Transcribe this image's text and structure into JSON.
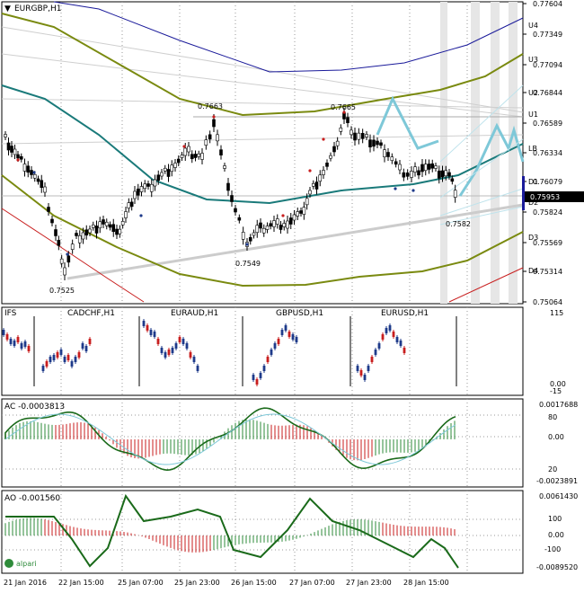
{
  "chart": {
    "symbol_title": "EURGBP,H1",
    "menu_icon": "triangle-down-icon",
    "price_ticks": [
      "0.77604",
      "0.77349",
      "0.77094",
      "0.76844",
      "0.76589",
      "0.76334",
      "0.76079",
      "0.75953",
      "0.75824",
      "0.75569",
      "0.75314",
      "0.75064"
    ],
    "current_price": "0.75953",
    "band_labels": [
      "U4",
      "U3",
      "U2",
      "U1",
      "LB",
      "D1",
      "D2",
      "D3",
      "D4"
    ],
    "annotations": [
      "0.7663",
      "0.7665",
      "0.7549",
      "0.7525",
      "0.7582"
    ]
  },
  "ifs": {
    "title": "IFS",
    "pairs": [
      "CADCHF,H1",
      "EURAUD,H1",
      "GBPUSD,H1",
      "EURUSD,H1"
    ],
    "ticks": [
      "115",
      "0.00",
      "-15"
    ]
  },
  "ac": {
    "title": "AC -0.0003813",
    "ticks": [
      "0.0017688",
      "80",
      "0.00",
      "20",
      "-0.0023891"
    ]
  },
  "ao": {
    "title": "AO -0.001560",
    "ticks": [
      "0.0061430",
      "100",
      "0.00",
      "-100",
      "-0.0089520"
    ],
    "logo": "alpari"
  },
  "time_axis": [
    "21 Jan 2016",
    "22 Jan 15:00",
    "25 Jan 07:00",
    "25 Jan 23:00",
    "26 Jan 15:00",
    "27 Jan 07:00",
    "27 Jan 23:00",
    "28 Jan 15:00"
  ],
  "colors": {
    "bull": "#1e3a8a",
    "bear": "#c81e1e",
    "teal": "#1a7a7a",
    "olive": "#7a8a10",
    "navy": "#1a1a9a",
    "cyan": "#7ec8d8"
  }
}
